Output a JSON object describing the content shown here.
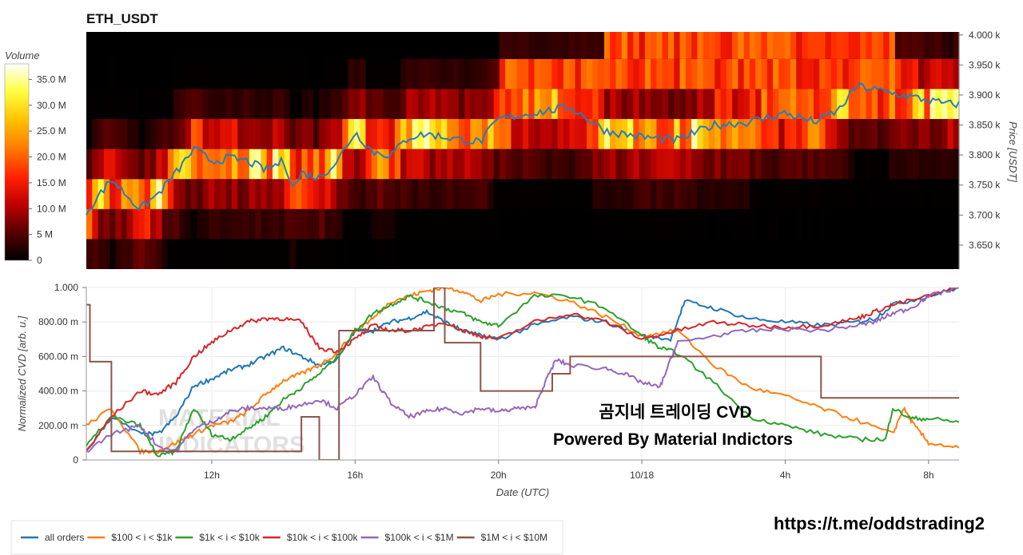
{
  "chart_data": [
    {
      "type": "heatmap",
      "title": "ETH_USDT",
      "ylabel": "Price [USDT]",
      "ylim": [
        3610,
        4005
      ],
      "y_ticks": [
        "3.650 k",
        "3.700 k",
        "3.750 k",
        "3.800 k",
        "3.850 k",
        "3.900 k",
        "3.950 k",
        "4.000 k"
      ],
      "y_tick_values": [
        3650,
        3700,
        3750,
        3800,
        3850,
        3900,
        3950,
        4000
      ],
      "colorbar": {
        "label": "Volume",
        "ticks": [
          "0",
          "5 M",
          "10.0 M",
          "15.0 M",
          "20.0 M",
          "25.0 M",
          "30.0 M",
          "35.0 M"
        ],
        "tick_values": [
          0,
          5,
          10,
          15,
          20,
          25,
          30,
          35
        ],
        "max": 38,
        "colors": [
          "#000000",
          "#550000",
          "#bb0000",
          "#ff2000",
          "#ff7a00",
          "#ffc000",
          "#ffff40",
          "#ffffff"
        ]
      },
      "price_bands": [
        3610,
        3660,
        3710,
        3760,
        3810,
        3860,
        3910,
        3960,
        4010
      ],
      "series": [
        {
          "name": "Price",
          "color": "#2b7bb9",
          "x": [
            8.5,
            9.2,
            10.0,
            10.5,
            11.0,
            11.5,
            12.0,
            12.5,
            13.0,
            13.5,
            14.0,
            14.3,
            14.5,
            15.0,
            15.5,
            16.0,
            16.5,
            17.0,
            17.5,
            18.0,
            19.0,
            19.5,
            20.0,
            21.0,
            22.0,
            23.0,
            24.0,
            25.0,
            26.0,
            27.0,
            28.0,
            28.8,
            29.0,
            29.5,
            30.0,
            32.5
          ],
          "y": [
            3705,
            3760,
            3710,
            3735,
            3770,
            3810,
            3790,
            3795,
            3790,
            3775,
            3790,
            3745,
            3770,
            3762,
            3790,
            3838,
            3805,
            3800,
            3830,
            3835,
            3825,
            3822,
            3860,
            3870,
            3880,
            3840,
            3830,
            3825,
            3850,
            3855,
            3870,
            3855,
            3860,
            3875,
            3915,
            3885
          ]
        }
      ]
    },
    {
      "type": "line",
      "xlabel": "Date (UTC)",
      "ylabel": "Normalized CVD [arb. u.]",
      "ylim": [
        0,
        1.0
      ],
      "xlim": [
        8.5,
        32.85
      ],
      "x_ticks": [
        "12h",
        "16h",
        "20h",
        "10/18",
        "4h",
        "8h"
      ],
      "x_tick_values": [
        12,
        16,
        20,
        24,
        28,
        32
      ],
      "y_ticks": [
        "0",
        "200.00 m",
        "400.00 m",
        "600.00 m",
        "800.00 m",
        "1.000"
      ],
      "y_tick_values": [
        0,
        0.2,
        0.4,
        0.6,
        0.8,
        1.0
      ],
      "series": [
        {
          "name": "all orders",
          "color": "#1f77b4",
          "x": [
            8.5,
            9.2,
            10.0,
            10.5,
            11.0,
            11.5,
            12.0,
            12.5,
            13.0,
            13.5,
            14.0,
            14.5,
            15.0,
            15.5,
            16.0,
            16.5,
            17.0,
            17.5,
            18.0,
            18.5,
            19.0,
            19.5,
            20.0,
            21.0,
            22.0,
            23.0,
            24.0,
            24.8,
            25.2,
            26.0,
            27.0,
            28.0,
            29.0,
            30.0,
            30.5,
            31.0,
            32.0,
            32.85
          ],
          "y": [
            0.05,
            0.25,
            0.15,
            0.15,
            0.25,
            0.43,
            0.47,
            0.52,
            0.55,
            0.6,
            0.65,
            0.6,
            0.55,
            0.58,
            0.75,
            0.75,
            0.8,
            0.82,
            0.86,
            0.8,
            0.75,
            0.72,
            0.7,
            0.78,
            0.83,
            0.8,
            0.72,
            0.7,
            0.92,
            0.88,
            0.82,
            0.8,
            0.78,
            0.8,
            0.82,
            0.9,
            0.95,
            1.0
          ]
        },
        {
          "name": "$100 < i < $1k",
          "color": "#ff7f0e",
          "x": [
            8.5,
            9.2,
            10.0,
            10.5,
            11.0,
            11.5,
            12.0,
            12.5,
            13.0,
            13.5,
            14.0,
            14.5,
            15.0,
            15.5,
            16.0,
            16.5,
            17.0,
            17.5,
            18.0,
            18.5,
            19.0,
            19.5,
            20.0,
            21.0,
            22.0,
            23.0,
            24.0,
            25.0,
            26.0,
            27.0,
            28.0,
            29.0,
            30.0,
            31.0,
            31.3,
            31.6,
            32.0,
            32.85
          ],
          "y": [
            0.2,
            0.3,
            0.05,
            0.05,
            0.1,
            0.15,
            0.2,
            0.22,
            0.28,
            0.38,
            0.46,
            0.5,
            0.55,
            0.62,
            0.75,
            0.82,
            0.92,
            0.95,
            0.98,
            1.0,
            0.98,
            0.92,
            0.96,
            0.97,
            0.92,
            0.83,
            0.72,
            0.75,
            0.55,
            0.42,
            0.37,
            0.3,
            0.23,
            0.15,
            0.3,
            0.2,
            0.1,
            0.07
          ]
        },
        {
          "name": "$1k < i < $10k",
          "color": "#2ca02c",
          "x": [
            8.5,
            9.2,
            10.0,
            10.5,
            11.0,
            11.5,
            12.0,
            12.5,
            13.0,
            13.5,
            14.0,
            14.5,
            15.0,
            15.5,
            16.0,
            16.5,
            17.0,
            17.5,
            18.0,
            18.5,
            19.0,
            19.5,
            20.0,
            21.0,
            22.0,
            23.0,
            24.0,
            24.5,
            25.0,
            26.0,
            27.0,
            28.0,
            29.0,
            30.0,
            30.8,
            31.0,
            31.5,
            32.0,
            32.85
          ],
          "y": [
            0.08,
            0.25,
            0.2,
            0.02,
            0.05,
            0.3,
            0.15,
            0.12,
            0.18,
            0.25,
            0.35,
            0.42,
            0.5,
            0.6,
            0.75,
            0.85,
            0.9,
            0.95,
            0.92,
            0.88,
            0.85,
            0.8,
            0.78,
            0.95,
            0.95,
            0.88,
            0.72,
            0.65,
            0.62,
            0.45,
            0.25,
            0.2,
            0.15,
            0.12,
            0.12,
            0.3,
            0.24,
            0.24,
            0.22
          ]
        },
        {
          "name": "$10k < i < $100k",
          "color": "#d62728",
          "x": [
            8.5,
            9.2,
            10.0,
            10.5,
            11.0,
            11.5,
            12.0,
            12.5,
            13.0,
            13.5,
            14.0,
            14.5,
            15.0,
            15.5,
            16.0,
            16.5,
            17.0,
            17.5,
            18.0,
            18.5,
            19.0,
            19.5,
            20.0,
            21.0,
            22.0,
            23.0,
            24.0,
            25.0,
            26.0,
            27.0,
            28.0,
            29.0,
            30.0,
            30.5,
            31.0,
            32.0,
            32.85
          ],
          "y": [
            0.05,
            0.25,
            0.4,
            0.38,
            0.45,
            0.6,
            0.68,
            0.75,
            0.8,
            0.82,
            0.82,
            0.8,
            0.65,
            0.63,
            0.7,
            0.78,
            0.75,
            0.75,
            0.77,
            0.8,
            0.75,
            0.72,
            0.7,
            0.8,
            0.85,
            0.8,
            0.7,
            0.75,
            0.8,
            0.78,
            0.77,
            0.78,
            0.82,
            0.86,
            0.9,
            0.95,
            1.0
          ]
        },
        {
          "name": "$100k < i < $1M",
          "color": "#9467bd",
          "x": [
            8.5,
            9.2,
            10.0,
            10.5,
            11.0,
            11.5,
            12.0,
            12.5,
            13.0,
            13.5,
            14.0,
            14.5,
            15.0,
            15.5,
            16.0,
            16.5,
            17.0,
            17.5,
            18.0,
            18.5,
            19.0,
            19.5,
            20.0,
            20.5,
            21.0,
            21.3,
            21.6,
            22.0,
            23.0,
            23.5,
            24.0,
            24.5,
            24.8,
            25.0,
            26.0,
            27.0,
            28.0,
            29.0,
            30.0,
            30.5,
            31.0,
            31.5,
            32.0,
            32.85
          ],
          "y": [
            0.05,
            0.15,
            0.2,
            0.08,
            0.05,
            0.18,
            0.22,
            0.28,
            0.3,
            0.3,
            0.3,
            0.32,
            0.35,
            0.3,
            0.38,
            0.48,
            0.33,
            0.25,
            0.28,
            0.3,
            0.27,
            0.3,
            0.28,
            0.3,
            0.3,
            0.45,
            0.58,
            0.55,
            0.53,
            0.5,
            0.45,
            0.42,
            0.58,
            0.68,
            0.72,
            0.75,
            0.76,
            0.75,
            0.78,
            0.8,
            0.85,
            0.88,
            0.95,
            1.0
          ]
        },
        {
          "name": "$1M < i < $10M",
          "color": "#8c564b",
          "step": true,
          "x": [
            8.5,
            8.6,
            9.2,
            10.7,
            11.0,
            14.0,
            14.5,
            15.0,
            15.55,
            15.75,
            18.2,
            18.5,
            19.5,
            21.5,
            22.0,
            29.0,
            32.85
          ],
          "y": [
            0.9,
            0.57,
            0.05,
            0.05,
            0.05,
            0.05,
            0.25,
            0.0,
            0.75,
            0.75,
            1.0,
            0.68,
            0.4,
            0.5,
            0.6,
            0.36,
            0.36
          ]
        }
      ],
      "legend": "bottom-left"
    }
  ],
  "watermark": {
    "line1": "MATERIAL",
    "line2": "INDICATORS"
  },
  "overlay": {
    "line1": "곰지네 트레이딩 CVD",
    "line2": "Powered By Material Indictors"
  },
  "footer_url": "https://t.me/oddstrading2"
}
